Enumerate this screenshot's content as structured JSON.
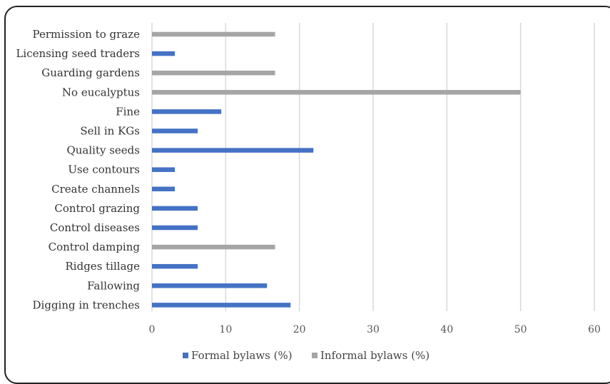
{
  "chart_data": {
    "type": "bar",
    "orientation": "horizontal",
    "title": "",
    "xlabel": "",
    "ylabel": "",
    "xlim": [
      0,
      60
    ],
    "x_ticks": [
      "0",
      "10",
      "20",
      "30",
      "40",
      "50",
      "60"
    ],
    "grid": "vertical",
    "legend_position": "bottom",
    "categories": [
      "Permission to graze",
      "Licensing seed traders",
      "Guarding gardens",
      "No eucalyptus",
      "Fine",
      "Sell in KGs",
      "Quality seeds",
      "Use contours",
      "Create channels",
      "Control grazing",
      "Control diseases",
      "Control damping",
      "Ridges tillage",
      "Fallowing",
      "Digging in trenches"
    ],
    "series": [
      {
        "name": "Formal bylaws (%)",
        "color": "#4472C4",
        "values": [
          0,
          3.1,
          0,
          0,
          9.4,
          6.2,
          21.9,
          3.1,
          3.1,
          6.2,
          6.2,
          0,
          6.2,
          15.6,
          18.8
        ]
      },
      {
        "name": "Informal bylaws (%)",
        "color": "#A5A5A5",
        "values": [
          16.7,
          0,
          16.7,
          50,
          0,
          0,
          0,
          0,
          0,
          0,
          0,
          16.7,
          0,
          0,
          0
        ]
      }
    ]
  }
}
